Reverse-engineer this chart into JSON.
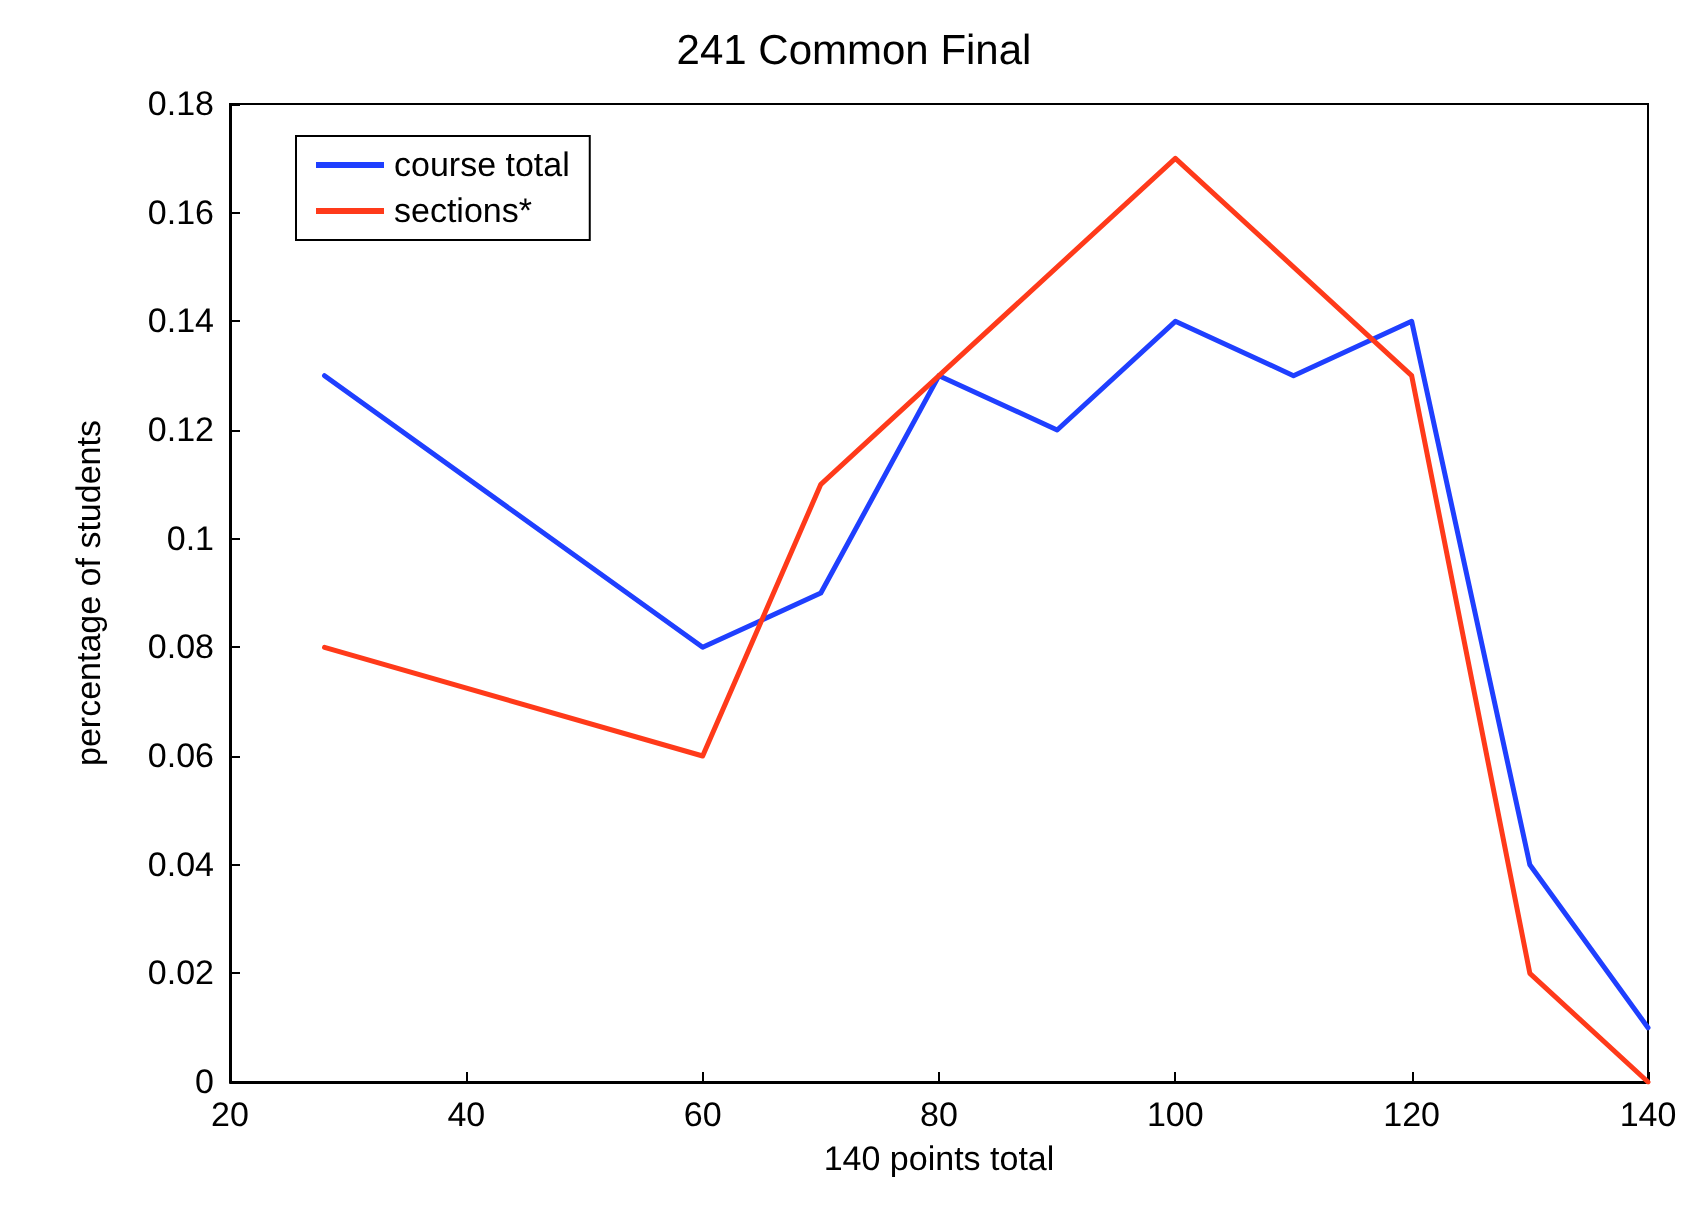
{
  "chart_data": {
    "type": "line",
    "title": "241 Common Final",
    "xlabel": "140 points total",
    "ylabel": "percentage of students",
    "xlim": [
      20,
      140
    ],
    "xticks": [
      20,
      40,
      60,
      80,
      100,
      120,
      140
    ],
    "ylim": [
      0,
      0.18
    ],
    "yticks": [
      0,
      0.02,
      0.04,
      0.06,
      0.08,
      0.1,
      0.12,
      0.14,
      0.16,
      0.18
    ],
    "grid": false,
    "legend": "top left",
    "marker": "none",
    "line_style": "solid",
    "series": [
      {
        "name": "course total",
        "color": "#1f3fff",
        "x": [
          28,
          60,
          70,
          80,
          90,
          100,
          110,
          120,
          130,
          140
        ],
        "values": [
          0.13,
          0.08,
          0.09,
          0.13,
          0.12,
          0.14,
          0.13,
          0.14,
          0.04,
          0.01
        ]
      },
      {
        "name": "sections*",
        "color": "#ff3a1a",
        "x": [
          28,
          60,
          70,
          80,
          100,
          120,
          130,
          140
        ],
        "values": [
          0.08,
          0.06,
          0.11,
          0.13,
          0.17,
          0.13,
          0.02,
          0
        ]
      }
    ]
  }
}
